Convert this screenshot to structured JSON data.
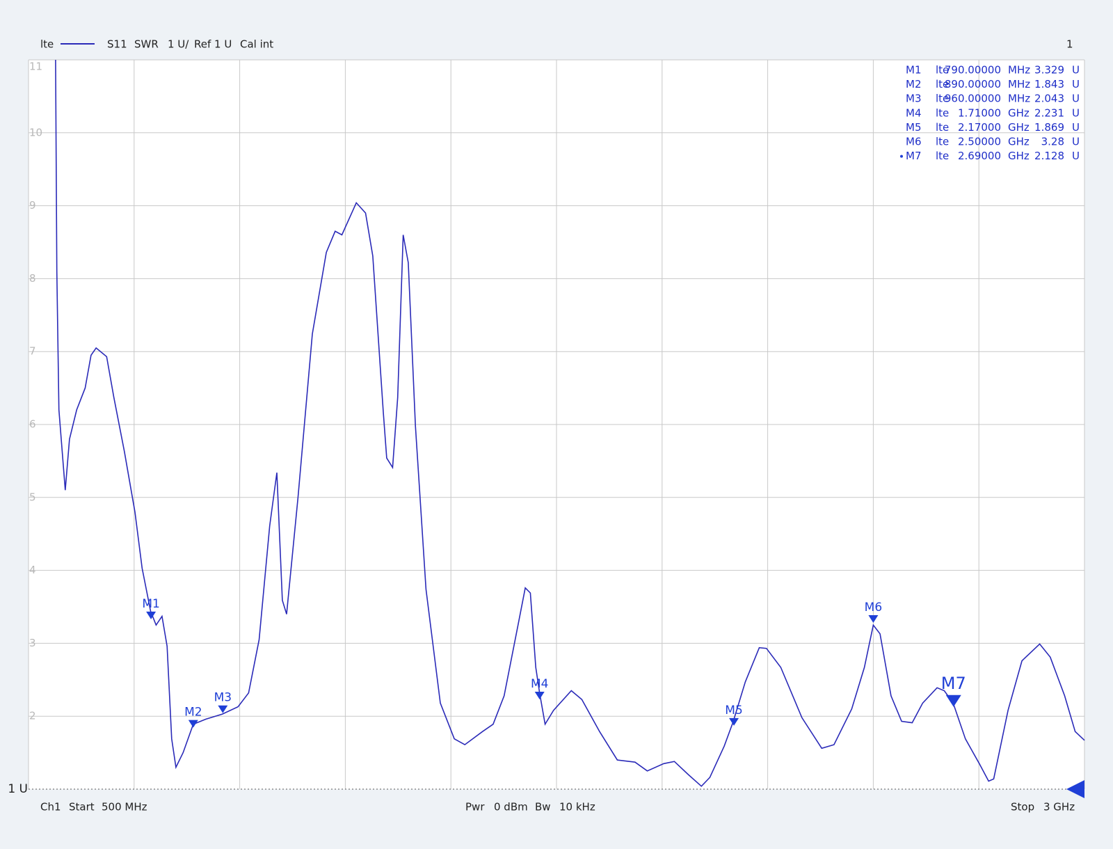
{
  "chart_data": {
    "type": "line",
    "header": {
      "trace": "lte",
      "parameter": "S11",
      "format": "SWR",
      "scale": "1 U/",
      "reference": "Ref 1 U",
      "calibration": "Cal int",
      "window": "1"
    },
    "footer": {
      "channel": "Ch1",
      "start_label": "Start",
      "start": "500 MHz",
      "power_label": "Pwr",
      "power": "0 dBm",
      "bandwidth_label": "Bw",
      "bandwidth": "10 kHz",
      "stop_label": "Stop",
      "stop": "3 GHz"
    },
    "series": [
      {
        "name": "lte",
        "color": "#2a2ab8",
        "x": [
          564,
          567,
          572,
          587,
          597,
          614,
          634,
          648,
          660,
          685,
          702,
          727,
          752,
          769,
          789,
          802,
          816,
          828,
          839,
          849,
          866,
          890,
          920,
          959,
          996,
          1021,
          1046,
          1071,
          1088,
          1101,
          1111,
          1138,
          1172,
          1205,
          1226,
          1242,
          1276,
          1298,
          1315,
          1340,
          1348,
          1362,
          1374,
          1387,
          1399,
          1416,
          1441,
          1475,
          1508,
          1533,
          1575,
          1600,
          1626,
          1659,
          1676,
          1688,
          1701,
          1710,
          1723,
          1743,
          1785,
          1810,
          1852,
          1894,
          1936,
          1965,
          2004,
          2029,
          2062,
          2093,
          2113,
          2147,
          2168,
          2197,
          2230,
          2247,
          2281,
          2331,
          2378,
          2407,
          2449,
          2479,
          2500,
          2516,
          2542,
          2567,
          2592,
          2617,
          2651,
          2668,
          2689,
          2718,
          2751,
          2773,
          2785,
          2819,
          2852,
          2894,
          2919,
          2953,
          2978,
          3000
        ],
        "values": [
          11,
          8.1,
          6.2,
          5.1,
          5.8,
          6.2,
          6.5,
          6.95,
          7.05,
          6.93,
          6.37,
          5.63,
          4.8,
          4.03,
          3.44,
          3.25,
          3.37,
          2.96,
          1.69,
          1.3,
          1.5,
          1.89,
          1.96,
          2.03,
          2.13,
          2.32,
          3.05,
          4.61,
          5.34,
          3.59,
          3.4,
          5.0,
          7.24,
          8.36,
          8.65,
          8.6,
          9.04,
          8.9,
          8.31,
          6.17,
          5.54,
          5.41,
          6.37,
          8.6,
          8.22,
          5.98,
          3.74,
          2.18,
          1.69,
          1.61,
          1.79,
          1.89,
          2.28,
          3.25,
          3.76,
          3.69,
          2.67,
          2.32,
          1.89,
          2.08,
          2.35,
          2.23,
          1.79,
          1.4,
          1.37,
          1.25,
          1.35,
          1.38,
          1.2,
          1.04,
          1.16,
          1.59,
          1.92,
          2.47,
          2.94,
          2.93,
          2.67,
          1.98,
          1.56,
          1.61,
          2.1,
          2.67,
          3.25,
          3.13,
          2.28,
          1.93,
          1.91,
          2.18,
          2.39,
          2.35,
          2.18,
          1.69,
          1.35,
          1.11,
          1.14,
          2.08,
          2.76,
          2.99,
          2.81,
          2.28,
          1.79,
          1.67
        ]
      }
    ],
    "markers": [
      {
        "name": "M1",
        "trace": "lte",
        "x": 790,
        "x_label": "790.00000",
        "x_unit": "MHz",
        "value": 3.329,
        "unit": "U"
      },
      {
        "name": "M2",
        "trace": "lte",
        "x": 890,
        "x_label": "890.00000",
        "x_unit": "MHz",
        "value": 1.843,
        "unit": "U"
      },
      {
        "name": "M3",
        "trace": "lte",
        "x": 960,
        "x_label": "960.00000",
        "x_unit": "MHz",
        "value": 2.043,
        "unit": "U"
      },
      {
        "name": "M4",
        "trace": "lte",
        "x": 1710,
        "x_label": "1.71000",
        "x_unit": "GHz",
        "value": 2.231,
        "unit": "U"
      },
      {
        "name": "M5",
        "trace": "lte",
        "x": 2170,
        "x_label": "2.17000",
        "x_unit": "GHz",
        "value": 1.869,
        "unit": "U"
      },
      {
        "name": "M6",
        "trace": "lte",
        "x": 2500,
        "x_label": "2.50000",
        "x_unit": "GHz",
        "value": 3.28,
        "unit": "U"
      },
      {
        "name": "M7",
        "trace": "lte",
        "x": 2690,
        "x_label": "2.69000",
        "x_unit": "GHz",
        "value": 2.128,
        "unit": "U",
        "active": true
      }
    ],
    "marker_color": "#1f3fd6",
    "xlim": [
      500,
      3000
    ],
    "xgrid": [
      500,
      750,
      1000,
      1250,
      1500,
      1750,
      2000,
      2250,
      2500,
      2750,
      3000
    ],
    "ylim": [
      1,
      11
    ],
    "yticks": [
      {
        "value": 1,
        "label": "1 U"
      },
      2,
      3,
      4,
      5,
      6,
      7,
      8,
      9,
      10,
      11
    ],
    "grid": true
  }
}
